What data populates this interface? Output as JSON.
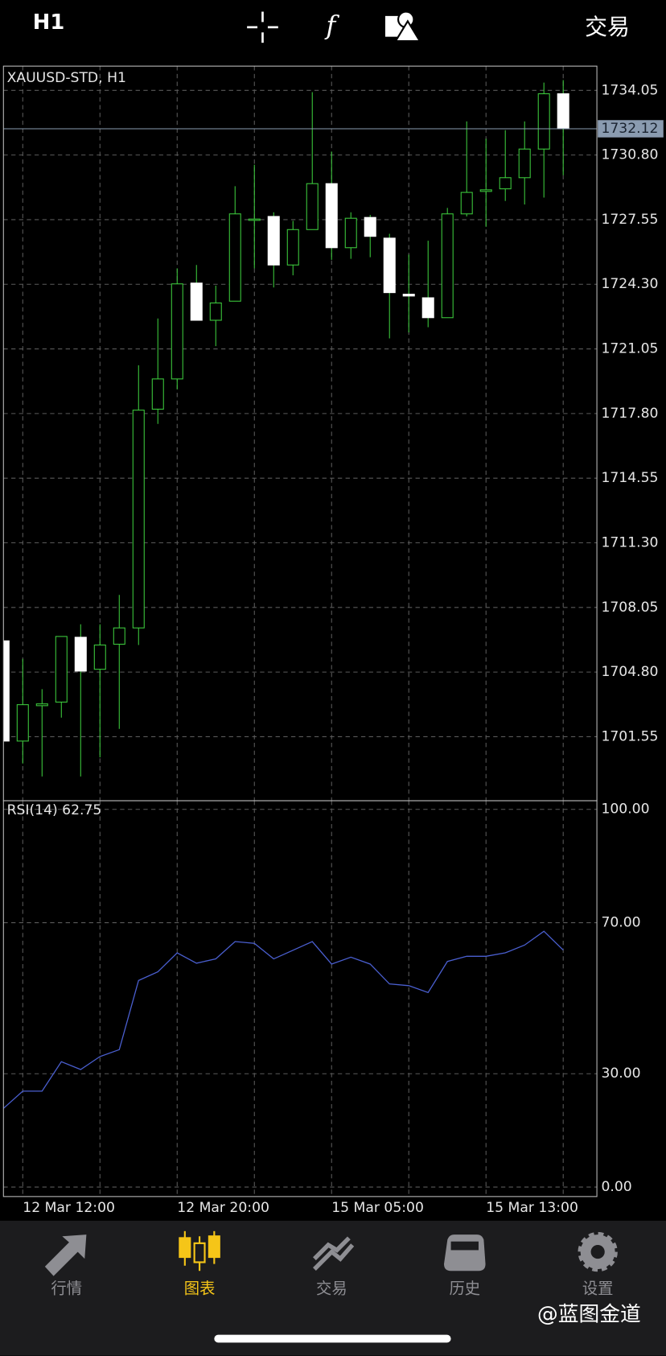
{
  "top_bar": {
    "timeframe": "H1",
    "trade": "交易"
  },
  "chart_data": [
    {
      "type": "candlestick",
      "title": "XAUUSD-STD, H1",
      "open": [
        1706.37,
        1701.33,
        1703.11,
        1703.29,
        1706.55,
        1704.94,
        1706.2,
        1707.02,
        1718.02,
        1719.54,
        1724.36,
        1722.49,
        1723.45,
        1727.53,
        1727.71,
        1725.27,
        1727.05,
        1729.36,
        1726.14,
        1727.66,
        1726.62,
        1723.8,
        1723.62,
        1722.62,
        1727.84,
        1728.97,
        1729.1,
        1729.66,
        1731.1,
        1733.88
      ],
      "high": [
        1706.37,
        1705.46,
        1703.94,
        1706.59,
        1707.2,
        1707.2,
        1708.68,
        1720.23,
        1722.58,
        1725.1,
        1725.27,
        1724.23,
        1729.23,
        1730.31,
        1727.92,
        1727.49,
        1733.96,
        1730.97,
        1727.92,
        1727.79,
        1726.84,
        1725.79,
        1726.49,
        1728.14,
        1732.49,
        1731.62,
        1732.05,
        1732.49,
        1734.44,
        1734.57
      ],
      "low": [
        1701.33,
        1700.2,
        1699.55,
        1702.51,
        1699.55,
        1700.51,
        1701.94,
        1706.16,
        1717.28,
        1719.02,
        1722.49,
        1721.19,
        1723.45,
        1725.1,
        1724.14,
        1724.75,
        1727.05,
        1725.53,
        1725.58,
        1725.66,
        1721.58,
        1721.88,
        1722.14,
        1722.62,
        1727.71,
        1727.19,
        1728.49,
        1728.31,
        1728.66,
        1729.79
      ],
      "close": [
        1701.33,
        1703.16,
        1703.2,
        1706.59,
        1704.85,
        1706.16,
        1707.02,
        1717.97,
        1719.54,
        1724.32,
        1722.49,
        1723.36,
        1727.84,
        1727.58,
        1725.27,
        1727.05,
        1729.36,
        1726.14,
        1727.62,
        1726.71,
        1723.88,
        1723.71,
        1722.62,
        1727.84,
        1728.92,
        1729.05,
        1729.66,
        1731.1,
        1733.88,
        1732.12
      ],
      "bull_color": "#3cc83c",
      "bear_color": "#ffffff",
      "current_price": 1732.12,
      "ylim": [
        1698.33,
        1735.27
      ],
      "yticks": [
        1734.05,
        {
          "value": 1730.8,
          "label": "1730.80"
        },
        1727.55,
        {
          "value": 1724.3,
          "label": "1724.30"
        },
        1721.05,
        {
          "value": 1717.8,
          "label": "1717.80"
        },
        1714.55,
        {
          "value": 1711.3,
          "label": "1711.30"
        },
        1708.05,
        {
          "value": 1704.8,
          "label": "1704.80"
        },
        1701.55
      ],
      "grid": true
    },
    {
      "type": "line",
      "title": "RSI(14) 62.75",
      "categories": [
        null,
        "12 Mar 12:00",
        null,
        null,
        null,
        null,
        null,
        null,
        null,
        "12 Mar 20:00",
        null,
        null,
        null,
        null,
        null,
        null,
        null,
        "15 Mar 05:00",
        null,
        null,
        null,
        null,
        null,
        null,
        null,
        "15 Mar 13:00",
        null,
        null,
        null,
        null
      ],
      "values": [
        20.82,
        25.4,
        25.4,
        33.18,
        31.12,
        34.55,
        36.38,
        54.69,
        56.98,
        62.01,
        59.27,
        60.41,
        64.99,
        64.53,
        60.41,
        62.7,
        64.99,
        59.04,
        60.87,
        59.04,
        53.78,
        53.32,
        51.49,
        59.73,
        61.1,
        61.1,
        62.01,
        64.07,
        67.73,
        62.75
      ],
      "color": "#4a5fd0",
      "ylim": [
        -2.52,
        102.29
      ],
      "yticks": [
        {
          "value": 100,
          "label": "100.00"
        },
        {
          "value": 70,
          "label": "70.00"
        },
        {
          "value": 30,
          "label": "30.00"
        },
        {
          "value": 0,
          "label": "0.00"
        }
      ],
      "grid": true
    }
  ],
  "tabs": [
    "行情",
    "图表",
    "交易",
    "历史",
    "设置"
  ],
  "watermark": "@蓝图金道"
}
